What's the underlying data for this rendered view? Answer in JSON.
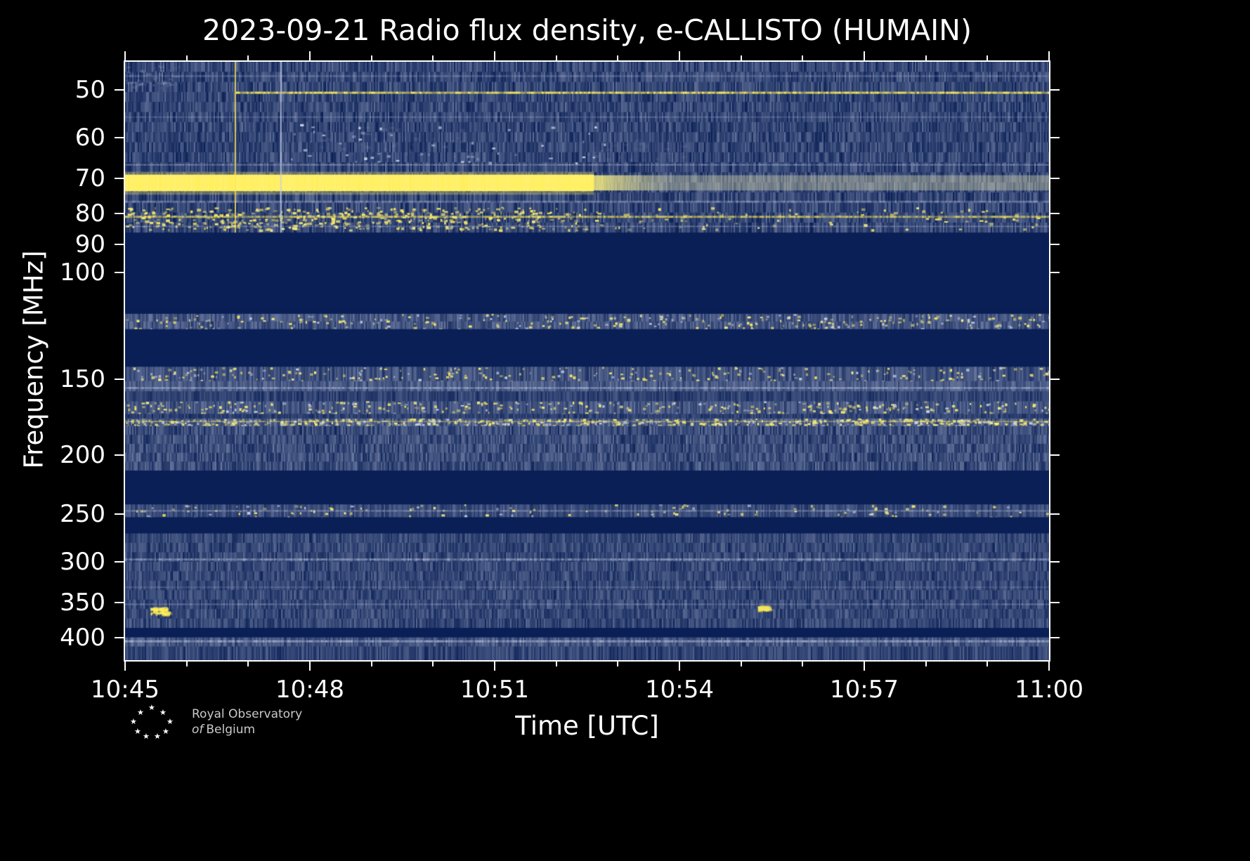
{
  "figure": {
    "title": "2023-09-21 Radio flux density, e-CALLISTO (HUMAIN)",
    "xlabel": "Time [UTC]",
    "ylabel": "Frequency [MHz]"
  },
  "logo": {
    "star": "★",
    "line1": "Royal Observatory",
    "line2_italic": "of",
    "line2_rest": "Belgium"
  },
  "chart_data": {
    "type": "heatmap",
    "subtype": "radio-spectrogram",
    "title": "2023-09-21 Radio flux density, e-CALLISTO (HUMAIN)",
    "xlabel": "Time [UTC]",
    "ylabel": "Frequency [MHz]",
    "date": "2023-09-21",
    "station": "HUMAIN",
    "time_start_utc": "10:45",
    "time_end_utc": "11:00",
    "duration_min": 15,
    "freq_range_mhz": [
      45,
      435
    ],
    "y_scale": "log",
    "y_axis_inverted": true,
    "x_ticks": [
      {
        "t": 0,
        "label": "10:45"
      },
      {
        "t": 3,
        "label": "10:48"
      },
      {
        "t": 6,
        "label": "10:51"
      },
      {
        "t": 9,
        "label": "10:54"
      },
      {
        "t": 12,
        "label": "10:57"
      },
      {
        "t": 15,
        "label": "11:00"
      }
    ],
    "x_minor_ticks_min": [
      1,
      2,
      4,
      5,
      7,
      8,
      10,
      11,
      13,
      14
    ],
    "y_ticks_mhz": [
      50,
      60,
      70,
      80,
      90,
      100,
      150,
      200,
      250,
      300,
      350,
      400
    ],
    "colors": {
      "figure_bg": "#000000",
      "plot_bg": "#0a1f55",
      "noise_light": "#c7d0e6",
      "signal_yellow": "#f7e75a",
      "bright_yellow": "#ffef5a",
      "white": "#ffffff",
      "axis": "#ffffff"
    },
    "bands": [
      {
        "f_lo": 45,
        "f_hi": 86,
        "style": "noise",
        "level": 0.22,
        "amp": 0.16
      },
      {
        "f_lo": 86,
        "f_hi": 116,
        "style": "dark"
      },
      {
        "f_lo": 117,
        "f_hi": 124,
        "style": "speckle",
        "level": 0.3,
        "amp": 0.14,
        "density": 22
      },
      {
        "f_lo": 124,
        "f_hi": 143,
        "style": "dark"
      },
      {
        "f_lo": 143,
        "f_hi": 151,
        "style": "speckle",
        "level": 0.28,
        "amp": 0.14,
        "density": 20
      },
      {
        "f_lo": 151,
        "f_hi": 157,
        "style": "noise",
        "level": 0.34,
        "amp": 0.13
      },
      {
        "f_lo": 157,
        "f_hi": 163,
        "style": "noise",
        "level": 0.2,
        "amp": 0.11
      },
      {
        "f_lo": 163,
        "f_hi": 171,
        "style": "speckle",
        "level": 0.3,
        "amp": 0.14,
        "density": 26
      },
      {
        "f_lo": 171,
        "f_hi": 174,
        "style": "noise",
        "level": 0.18,
        "amp": 0.1
      },
      {
        "f_lo": 174,
        "f_hi": 179,
        "style": "speckle",
        "level": 0.34,
        "amp": 0.15,
        "density": 48
      },
      {
        "f_lo": 179,
        "f_hi": 212,
        "style": "noise",
        "level": 0.26,
        "amp": 0.17
      },
      {
        "f_lo": 212,
        "f_hi": 241,
        "style": "dark"
      },
      {
        "f_lo": 241,
        "f_hi": 253,
        "style": "speckle",
        "level": 0.25,
        "amp": 0.12,
        "density": 10
      },
      {
        "f_lo": 253,
        "f_hi": 269,
        "style": "dark"
      },
      {
        "f_lo": 269,
        "f_hi": 385,
        "style": "noise",
        "level": 0.23,
        "amp": 0.14
      },
      {
        "f_lo": 385,
        "f_hi": 399,
        "style": "dark"
      },
      {
        "f_lo": 399,
        "f_hi": 413,
        "style": "noise",
        "level": 0.3,
        "amp": 0.14
      },
      {
        "f_lo": 413,
        "f_hi": 435,
        "style": "noise",
        "level": 0.21,
        "amp": 0.13
      }
    ],
    "burst": {
      "f_lo": 69,
      "f_hi": 73.5,
      "t_solid_end_min": 7.6,
      "description": "strong saturated emission band near 70 MHz until ~10:52.5, fading but persistent to 11:00"
    },
    "h_lines": [
      {
        "f": 47.5,
        "px": 3,
        "color": "noise_light",
        "alpha": 0.2,
        "t0": 0,
        "t1": 15
      },
      {
        "f": 50.6,
        "px": 3,
        "color": "bright_yellow",
        "alpha": 0.75,
        "t0": 1.8,
        "t1": 15
      },
      {
        "f": 55.5,
        "px": 2,
        "color": "noise_light",
        "alpha": 0.22,
        "t0": 0,
        "t1": 15
      },
      {
        "f": 66.5,
        "px": 2,
        "color": "noise_light",
        "alpha": 0.35,
        "t0": 0,
        "t1": 15
      },
      {
        "f": 76.5,
        "px": 3,
        "color": "noise_light",
        "alpha": 0.3,
        "t0": 0,
        "t1": 15
      },
      {
        "f": 81,
        "px": 3,
        "color": "signal_yellow",
        "alpha": 0.55,
        "t0": 0,
        "t1": 15
      },
      {
        "f": 84,
        "px": 2,
        "color": "noise_light",
        "alpha": 0.28,
        "t0": 0,
        "t1": 15
      },
      {
        "f": 155,
        "px": 2,
        "color": "noise_light",
        "alpha": 0.5,
        "t0": 0,
        "t1": 15
      },
      {
        "f": 176,
        "px": 2,
        "color": "signal_yellow",
        "alpha": 0.35,
        "t0": 0,
        "t1": 15
      },
      {
        "f": 247,
        "px": 2,
        "color": "noise_light",
        "alpha": 0.35,
        "t0": 0,
        "t1": 15
      },
      {
        "f": 297,
        "px": 3,
        "color": "noise_light",
        "alpha": 0.4,
        "t0": 0,
        "t1": 15
      },
      {
        "f": 330,
        "px": 2,
        "color": "noise_light",
        "alpha": 0.18,
        "t0": 0,
        "t1": 15
      },
      {
        "f": 352,
        "px": 2,
        "color": "noise_light",
        "alpha": 0.28,
        "t0": 0,
        "t1": 15
      },
      {
        "f": 405,
        "px": 3,
        "color": "noise_light",
        "alpha": 0.45,
        "t0": 0,
        "t1": 15
      }
    ],
    "speckle_regions": [
      {
        "f_lo": 78,
        "f_hi": 85,
        "t0": 0,
        "t1": 7.5,
        "density": 70,
        "color": "signal_yellow"
      },
      {
        "f_lo": 78,
        "f_hi": 85,
        "t0": 7.5,
        "t1": 15,
        "density": 12,
        "color": "signal_yellow"
      },
      {
        "f_lo": 57,
        "f_hi": 66,
        "t0": 2.5,
        "t1": 8,
        "density": 10,
        "color": "noise_light"
      }
    ],
    "patches": [
      {
        "t": 4.3,
        "f_c": 61,
        "w_min": 2.6,
        "h_mhz": 7,
        "color": "noise_light",
        "alpha": 0.14
      },
      {
        "t": 8.3,
        "f_c": 63,
        "w_min": 1.6,
        "h_mhz": 6,
        "color": "noise_light",
        "alpha": 0.1
      },
      {
        "t": 0.4,
        "f_c": 47.5,
        "w_min": 1.0,
        "h_mhz": 4,
        "color": "noise_light",
        "alpha": 0.22
      },
      {
        "t": 0.55,
        "f_c": 360,
        "w_min": 0.28,
        "h_mhz": 9,
        "color": "bright_yellow",
        "alpha": 0.9
      },
      {
        "t": 10.35,
        "f_c": 356,
        "w_min": 0.16,
        "h_mhz": 5,
        "color": "signal_yellow",
        "alpha": 0.7
      }
    ],
    "v_lines": [
      {
        "t": 1.79,
        "f_lo": 45,
        "f_hi": 86,
        "px": 2,
        "color": "signal_yellow",
        "alpha": 0.8
      },
      {
        "t": 2.53,
        "f_lo": 45,
        "f_hi": 86,
        "px": 2,
        "color": "noise_light",
        "alpha": 0.8
      }
    ]
  }
}
